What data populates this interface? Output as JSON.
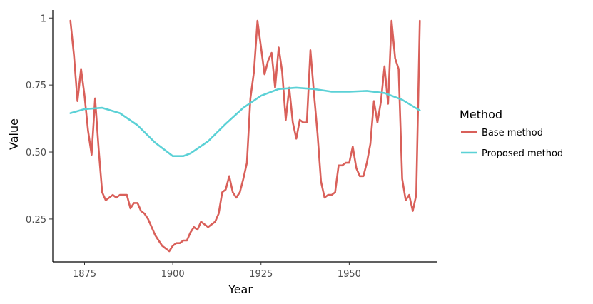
{
  "chart_data": {
    "type": "line",
    "title": "",
    "xlabel": "Year",
    "ylabel": "Value",
    "xlim": [
      1866,
      1975
    ],
    "ylim": [
      0.09,
      1.03
    ],
    "x_ticks": [
      1875,
      1900,
      1925,
      1950
    ],
    "y_ticks": [
      0.25,
      0.5,
      0.75,
      1
    ],
    "y_tick_labels": [
      "0.25",
      "0.50",
      "0.75",
      "1"
    ],
    "grid": false,
    "legend": {
      "title": "Method",
      "placement": "right"
    },
    "series": [
      {
        "name": "Base method",
        "color": "#d9605a",
        "x": [
          1871,
          1872,
          1873,
          1874,
          1875,
          1876,
          1877,
          1878,
          1879,
          1880,
          1881,
          1882,
          1883,
          1884,
          1885,
          1886,
          1887,
          1888,
          1889,
          1890,
          1891,
          1892,
          1893,
          1894,
          1895,
          1896,
          1897,
          1898,
          1899,
          1900,
          1901,
          1902,
          1903,
          1904,
          1905,
          1906,
          1907,
          1908,
          1909,
          1910,
          1911,
          1912,
          1913,
          1914,
          1915,
          1916,
          1917,
          1918,
          1919,
          1920,
          1921,
          1922,
          1923,
          1924,
          1925,
          1926,
          1927,
          1928,
          1929,
          1930,
          1931,
          1932,
          1933,
          1934,
          1935,
          1936,
          1937,
          1938,
          1939,
          1940,
          1941,
          1942,
          1943,
          1944,
          1945,
          1946,
          1947,
          1948,
          1949,
          1950,
          1951,
          1952,
          1953,
          1954,
          1955,
          1956,
          1957,
          1958,
          1959,
          1960,
          1961,
          1962,
          1963,
          1964,
          1965,
          1966,
          1967,
          1968,
          1969,
          1970
        ],
        "values": [
          0.99,
          0.86,
          0.69,
          0.81,
          0.71,
          0.58,
          0.49,
          0.7,
          0.51,
          0.35,
          0.32,
          0.33,
          0.34,
          0.33,
          0.34,
          0.34,
          0.34,
          0.29,
          0.31,
          0.31,
          0.28,
          0.27,
          0.25,
          0.22,
          0.19,
          0.17,
          0.15,
          0.14,
          0.13,
          0.15,
          0.16,
          0.16,
          0.17,
          0.17,
          0.2,
          0.22,
          0.21,
          0.24,
          0.23,
          0.22,
          0.23,
          0.24,
          0.27,
          0.35,
          0.36,
          0.41,
          0.35,
          0.33,
          0.35,
          0.4,
          0.46,
          0.7,
          0.8,
          0.99,
          0.89,
          0.79,
          0.84,
          0.87,
          0.74,
          0.89,
          0.8,
          0.62,
          0.74,
          0.61,
          0.55,
          0.62,
          0.61,
          0.61,
          0.88,
          0.72,
          0.57,
          0.39,
          0.33,
          0.34,
          0.34,
          0.35,
          0.45,
          0.45,
          0.46,
          0.46,
          0.52,
          0.44,
          0.41,
          0.41,
          0.46,
          0.53,
          0.69,
          0.61,
          0.69,
          0.82,
          0.68,
          0.99,
          0.85,
          0.81,
          0.4,
          0.32,
          0.34,
          0.28,
          0.34,
          0.99
        ]
      },
      {
        "name": "Proposed method",
        "color": "#5bd1d6",
        "x": [
          1871,
          1875,
          1880,
          1885,
          1890,
          1895,
          1900,
          1903,
          1905,
          1910,
          1915,
          1920,
          1925,
          1930,
          1935,
          1940,
          1945,
          1950,
          1955,
          1960,
          1965,
          1970
        ],
        "values": [
          0.645,
          0.66,
          0.665,
          0.645,
          0.6,
          0.535,
          0.485,
          0.485,
          0.495,
          0.54,
          0.605,
          0.665,
          0.71,
          0.735,
          0.74,
          0.735,
          0.725,
          0.725,
          0.728,
          0.72,
          0.695,
          0.655
        ]
      }
    ]
  }
}
